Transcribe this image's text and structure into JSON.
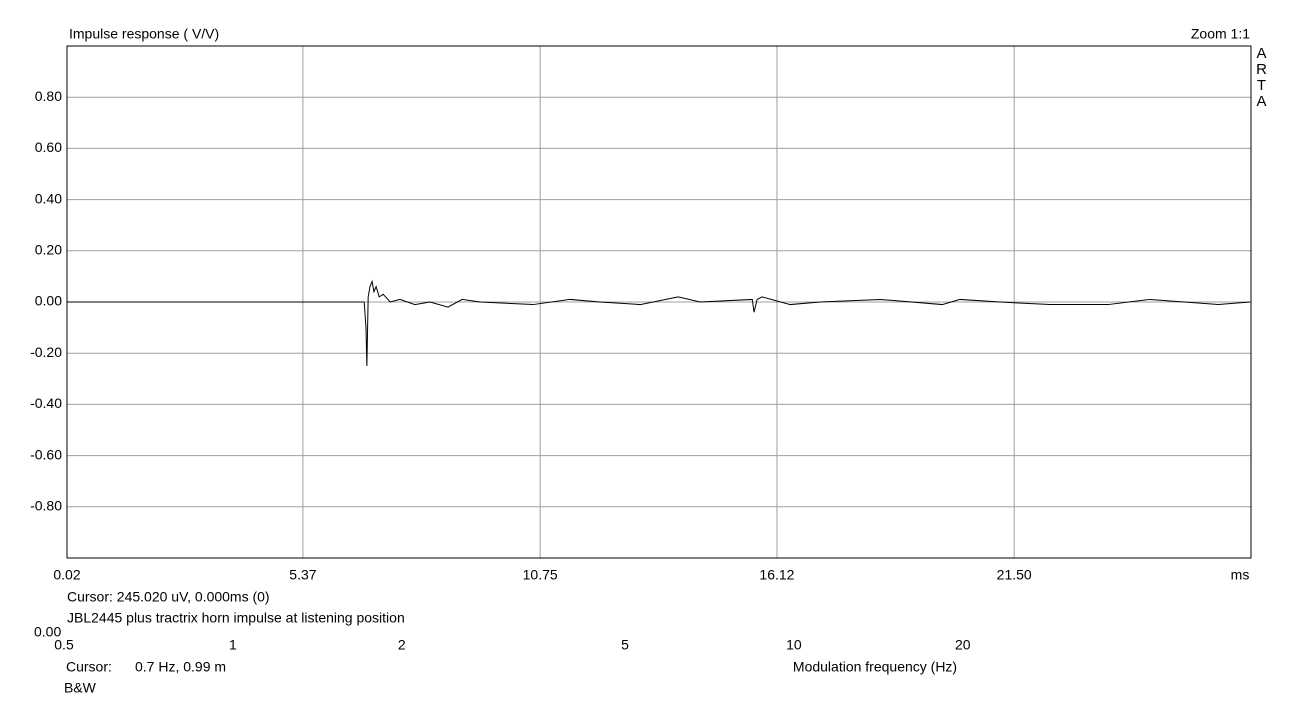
{
  "chart_data": {
    "type": "line",
    "title": "Impulse response ( V/V)",
    "zoom": "Zoom 1:1",
    "brand": "ARTA",
    "x_label": "ms",
    "cursor": "Cursor: 245.020 uV, 0.000ms (0)",
    "caption": "JBL2445 plus tractrix horn impulse at listening position",
    "x": [
      0.02,
      6.76,
      6.8,
      6.82,
      6.85,
      6.89,
      6.94,
      6.98,
      7.03,
      7.1,
      7.19,
      7.35,
      7.57,
      7.91,
      8.25,
      8.66,
      8.98,
      9.39,
      10.59,
      11.43,
      12.11,
      13.02,
      13.88,
      14.38,
      15.56,
      15.6,
      15.67,
      15.78,
      16.42,
      17.1,
      18.46,
      19.87,
      20.27,
      21.18,
      22.31,
      23.63,
      24.58,
      26.13,
      26.85
    ],
    "series": [
      {
        "name": "Impulse response",
        "color": "#000000",
        "values": [
          0,
          0,
          -0.1,
          -0.25,
          0.02,
          0.06,
          0.08,
          0.04,
          0.06,
          0.02,
          0.03,
          0.0,
          0.01,
          -0.01,
          0.0,
          -0.02,
          0.01,
          0.0,
          -0.01,
          0.01,
          0.0,
          -0.01,
          0.02,
          0.0,
          0.01,
          -0.04,
          0.01,
          0.02,
          -0.01,
          0.0,
          0.01,
          -0.01,
          0.01,
          0.0,
          -0.01,
          -0.01,
          0.01,
          -0.01,
          0.0
        ]
      }
    ],
    "xlim": [
      0.02,
      26.87
    ],
    "ylim": [
      -1,
      1
    ],
    "xticks": [
      0.02,
      5.37,
      10.75,
      16.12,
      {
        "value": 21.5,
        "label": "21.50"
      }
    ],
    "yticks": [
      {
        "value": 0.8,
        "label": "0.80"
      },
      {
        "value": 0.6,
        "label": "0.60"
      },
      {
        "value": 0.4,
        "label": "0.40"
      },
      {
        "value": 0.2,
        "label": "0.20"
      },
      {
        "value": 0,
        "label": "0.00"
      },
      {
        "value": -0.2,
        "label": "-0.20"
      },
      {
        "value": -0.4,
        "label": "-0.40"
      },
      {
        "value": -0.6,
        "label": "-0.60"
      },
      {
        "value": -0.8,
        "label": "-0.80"
      }
    ],
    "grid": true
  },
  "underlay": {
    "cut_tick": "0.00",
    "xticks": [
      0.5,
      1,
      2,
      5,
      10,
      20
    ],
    "xlim": [
      0.5,
      40
    ],
    "log_x": true,
    "cursor_label": "Cursor:",
    "cursor_value": "0.7 Hz, 0.99 m",
    "x_label": "Modulation frequency (Hz)",
    "footer": "B&W"
  }
}
